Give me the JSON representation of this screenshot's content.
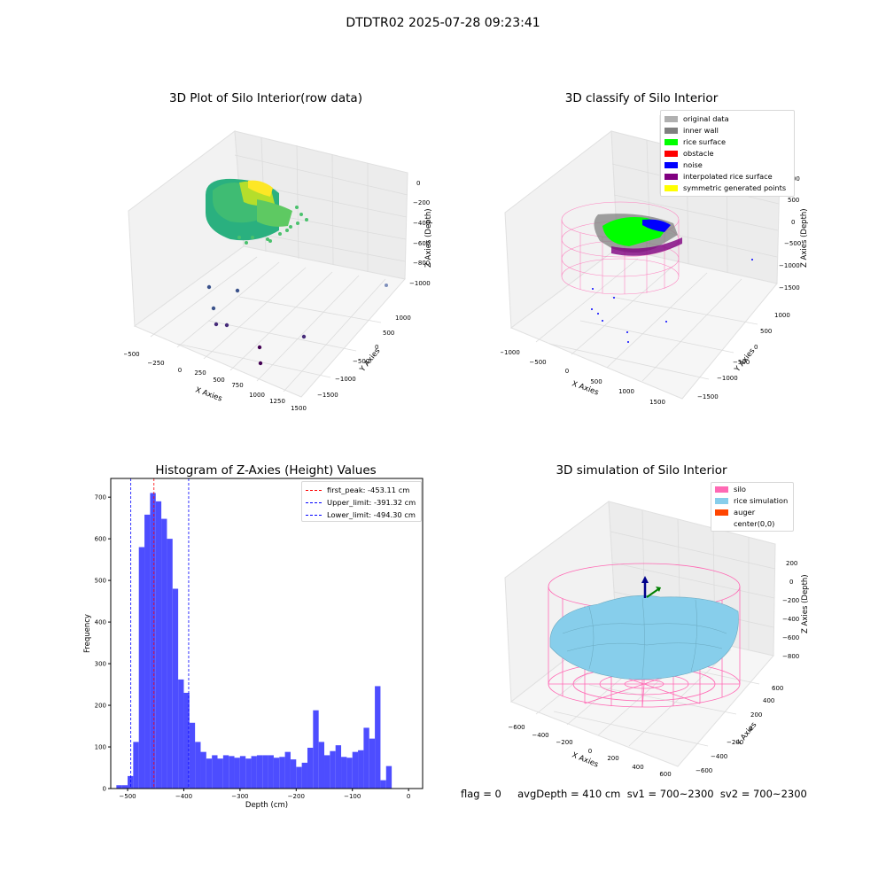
{
  "suptitle": "DTDTR02 2025-07-28 09:23:41",
  "footer": "flag = 0     avgDepth = 410 cm  sv1 = 700~2300  sv2 = 700~2300",
  "colors": {
    "histogram_bar": "#4d4dff",
    "first_peak_line": "#ff0000",
    "limit_lines": "#0000ff",
    "silo_wire": "#ff69b4",
    "rice_simulation": "#87ceeb",
    "auger": "#ff4500"
  },
  "panels": {
    "raw": {
      "title": "3D Plot of Silo Interior(row data)",
      "xlabel": "X Axies",
      "ylabel": "Y Axies",
      "zlabel": "Z Axies (Depth)",
      "xticks": [
        "−500",
        "−250",
        "0",
        "250",
        "500",
        "750",
        "1000",
        "1250",
        "1500"
      ],
      "yticks": [
        "−1500",
        "−1000",
        "−500",
        "0",
        "500",
        "1000"
      ],
      "zticks": [
        "0",
        "−200",
        "−400",
        "−600",
        "−800",
        "−1000"
      ]
    },
    "classify": {
      "title": "3D classify of Silo Interior",
      "xlabel": "X Axies",
      "ylabel": "Y Axies",
      "zlabel": "Z Axies (Depth)",
      "xticks": [
        "−1000",
        "−500",
        "0",
        "500",
        "1000",
        "1500"
      ],
      "yticks": [
        "−1500",
        "−1000",
        "−500",
        "0",
        "500",
        "1000"
      ],
      "zticks": [
        "1000",
        "500",
        "0",
        "−500",
        "−1000",
        "−1500"
      ],
      "legend": [
        {
          "label": "original data",
          "color": "#b0b0b0"
        },
        {
          "label": "inner wall",
          "color": "#808080"
        },
        {
          "label": "rice surface",
          "color": "#00ff00"
        },
        {
          "label": "obstacle",
          "color": "#ff0000"
        },
        {
          "label": "noise",
          "color": "#0000ff"
        },
        {
          "label": "interpolated rice surface",
          "color": "#800080"
        },
        {
          "label": "symmetric generated points",
          "color": "#ffff00"
        }
      ]
    },
    "simulation": {
      "title": "3D simulation of Silo Interior",
      "xlabel": "X Axies",
      "ylabel": "Y Axies",
      "zlabel": "Z Axies (Depth)",
      "xticks": [
        "−600",
        "−400",
        "−200",
        "0",
        "200",
        "400",
        "600"
      ],
      "yticks": [
        "−600",
        "−400",
        "−200",
        "0",
        "200",
        "400",
        "600"
      ],
      "zticks": [
        "200",
        "0",
        "−200",
        "−400",
        "−600",
        "−800"
      ],
      "legend": [
        {
          "label": "silo",
          "color": "#ff69b4"
        },
        {
          "label": "rice simulation",
          "color": "#87ceeb"
        },
        {
          "label": "auger",
          "color": "#ff4500"
        },
        {
          "label": "center(0,0)",
          "color": ""
        }
      ]
    }
  },
  "chart_data": [
    {
      "type": "bar",
      "title": "Histogram of Z-Axies (Height) Values",
      "xlabel": "Depth (cm)",
      "ylabel": "Frequency",
      "xlim": [
        -530,
        25
      ],
      "ylim": [
        0,
        745
      ],
      "xticks": [
        -500,
        -400,
        -300,
        -200,
        -100,
        0
      ],
      "yticks": [
        0,
        100,
        200,
        300,
        400,
        500,
        600,
        700
      ],
      "bin_width": 10,
      "bin_starts": [
        -520,
        -510,
        -500,
        -490,
        -480,
        -470,
        -460,
        -450,
        -440,
        -430,
        -420,
        -410,
        -400,
        -390,
        -380,
        -370,
        -360,
        -350,
        -340,
        -330,
        -320,
        -310,
        -300,
        -290,
        -280,
        -270,
        -260,
        -250,
        -240,
        -230,
        -220,
        -210,
        -200,
        -190,
        -180,
        -170,
        -160,
        -150,
        -140,
        -130,
        -120,
        -110,
        -100,
        -90,
        -80,
        -70,
        -60,
        -50,
        -40,
        -30,
        -20,
        -10,
        0
      ],
      "values": [
        8,
        8,
        30,
        112,
        580,
        658,
        710,
        690,
        648,
        600,
        480,
        262,
        230,
        158,
        112,
        88,
        72,
        80,
        72,
        80,
        78,
        74,
        78,
        72,
        78,
        80,
        80,
        80,
        74,
        76,
        88,
        70,
        52,
        62,
        98,
        188,
        112,
        80,
        90,
        104,
        76,
        74,
        88,
        92,
        146,
        120,
        246,
        20,
        54,
        0,
        0,
        0,
        0
      ],
      "lines": [
        {
          "name": "first_peak: -453.11 cm",
          "x": -453.11,
          "color": "#ff0000"
        },
        {
          "name": "Upper_limit: -391.32 cm",
          "x": -391.32,
          "color": "#0000ff"
        },
        {
          "name": "Lower_limit: -494.30 cm",
          "x": -494.3,
          "color": "#0000ff"
        }
      ],
      "legend_position": "upper right"
    }
  ]
}
